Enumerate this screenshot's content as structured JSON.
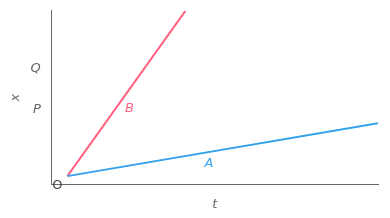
{
  "chart_data": {
    "type": "line",
    "xlabel": "t",
    "ylabel": "x",
    "series": [
      {
        "name": "A",
        "x": [
          0,
          10
        ],
        "values": [
          0,
          3.2
        ]
      },
      {
        "name": "B",
        "x": [
          0,
          3.8
        ],
        "values": [
          0,
          10
        ]
      }
    ],
    "annotations": [
      {
        "text": "O"
      }
    ],
    "xlim": [
      -0.5,
      10
    ],
    "ylim": [
      -0.5,
      10
    ],
    "xticks": [],
    "yticks": [
      {
        "value": 4.0,
        "label": "P"
      },
      {
        "value": 6.5,
        "label": "Q"
      }
    ],
    "tick_labels": "y",
    "grid": false,
    "legend": false
  }
}
